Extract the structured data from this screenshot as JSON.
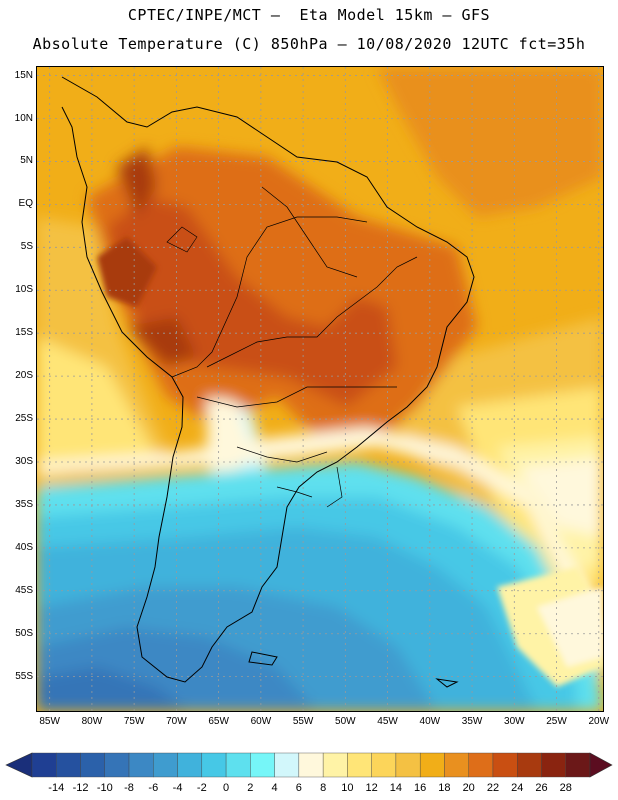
{
  "header": {
    "line1": "CPTEC/INPE/MCT –  Eta Model 15km – GFS",
    "line2": "Absolute Temperature (C) 850hPa – 10/08/2020 12UTC fct=35h"
  },
  "map": {
    "lat_labels": [
      "15N",
      "10N",
      "5N",
      "EQ",
      "5S",
      "10S",
      "15S",
      "20S",
      "25S",
      "30S",
      "35S",
      "40S",
      "45S",
      "50S",
      "55S"
    ],
    "lon_labels": [
      "85W",
      "80W",
      "75W",
      "70W",
      "65W",
      "60W",
      "55W",
      "50W",
      "45W",
      "40W",
      "35W",
      "30W",
      "25W",
      "20W"
    ],
    "lat_range": [
      16,
      -59
    ],
    "lon_range": [
      -86.5,
      -19.5
    ]
  },
  "colorbar": {
    "values": [
      "-14",
      "-12",
      "-10",
      "-8",
      "-6",
      "-4",
      "-2",
      "0",
      "2",
      "4",
      "6",
      "8",
      "10",
      "12",
      "14",
      "16",
      "18",
      "20",
      "22",
      "24",
      "26",
      "28"
    ],
    "colors": [
      "#1f3f93",
      "#25519f",
      "#2b61aa",
      "#3574b7",
      "#3c88c4",
      "#3f9ccf",
      "#40b2dc",
      "#46c8e6",
      "#5ee0ee",
      "#76f6f8",
      "#d2f7fb",
      "#fff8dc",
      "#fff3a6",
      "#ffe577",
      "#fcd55a",
      "#f4c143",
      "#f1ae18",
      "#e9901f",
      "#de6e19",
      "#c94f12",
      "#a83a0f",
      "#8a2410",
      "#6b1818"
    ],
    "arrow_low": "#1a2f7a",
    "arrow_high": "#5b0d20"
  }
}
